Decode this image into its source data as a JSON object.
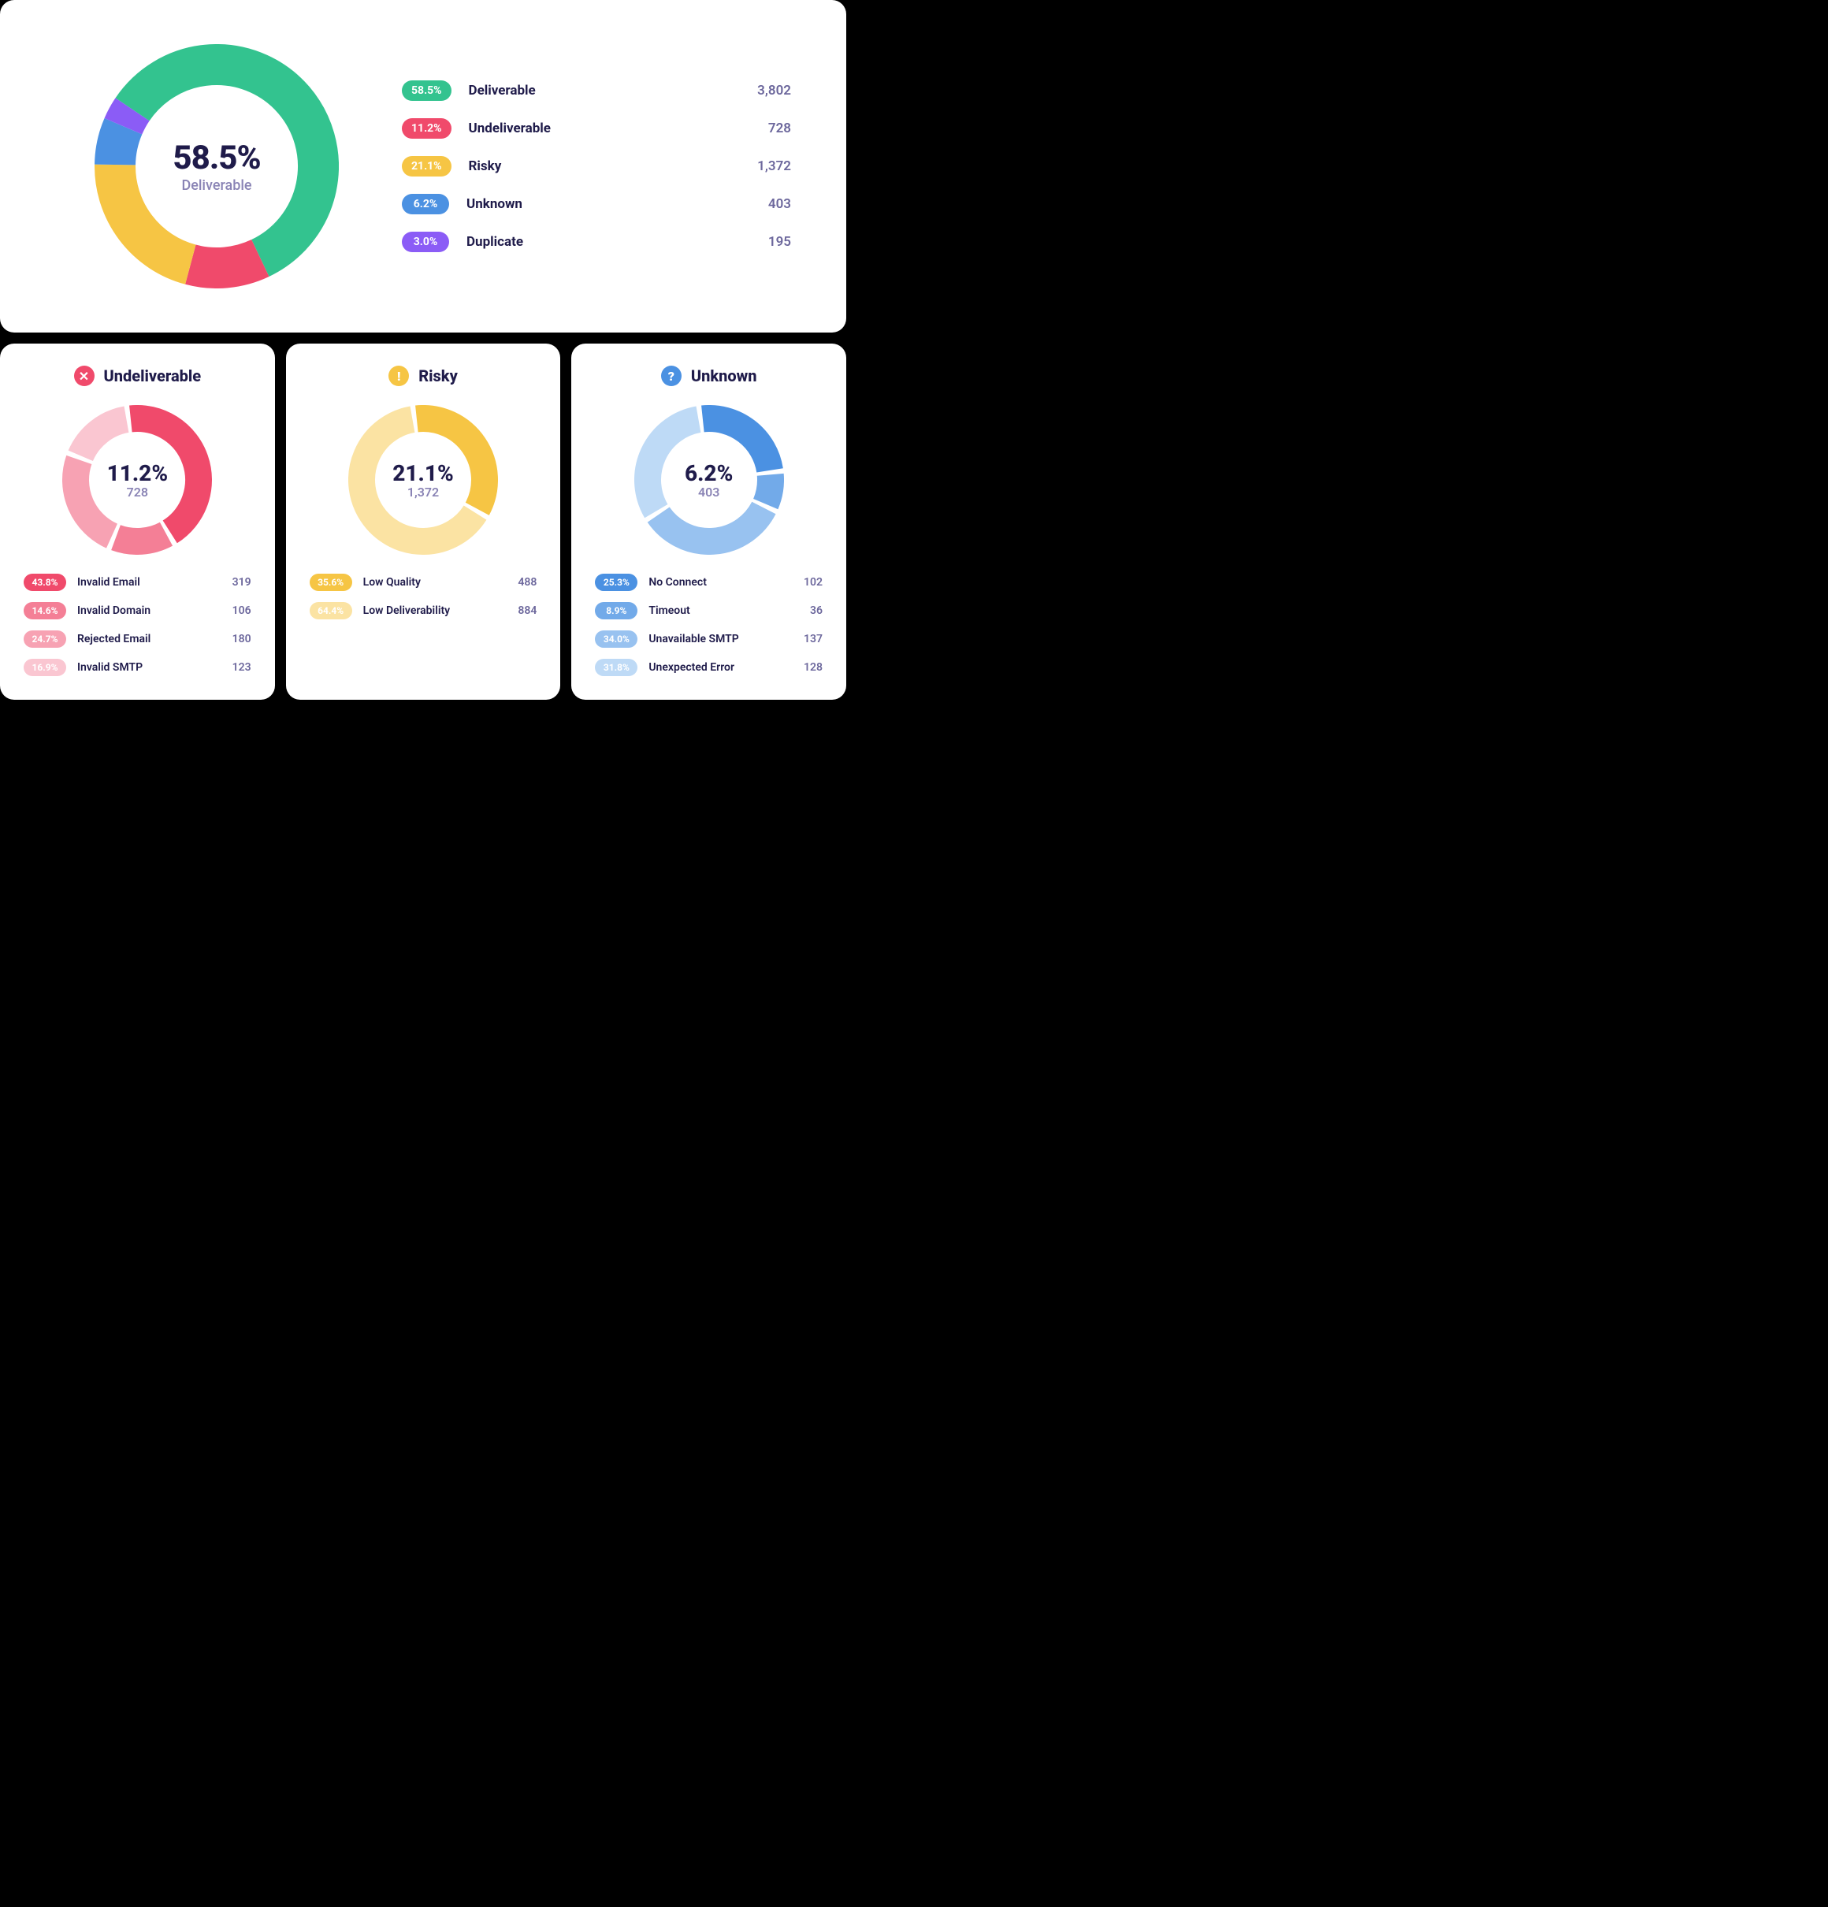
{
  "colors": {
    "text_dark": "#1f1b4a",
    "text_muted": "#8a84b5",
    "text_count": "#6c679c",
    "card_bg": "#ffffff",
    "body_bg": "#000000"
  },
  "main_chart": {
    "type": "donut",
    "size": 310,
    "thickness": 52,
    "gap_deg": 0,
    "start_angle": -56,
    "center_percent": "58.5%",
    "center_label": "Deliverable",
    "slices": [
      {
        "key": "deliverable",
        "label": "Deliverable",
        "percent": 58.5,
        "percent_label": "58.5%",
        "count": "3,802",
        "color": "#33c38f"
      },
      {
        "key": "undeliverable",
        "label": "Undeliverable",
        "percent": 11.2,
        "percent_label": "11.2%",
        "count": "728",
        "color": "#f04a6b"
      },
      {
        "key": "risky",
        "label": "Risky",
        "percent": 21.1,
        "percent_label": "21.1%",
        "count": "1,372",
        "color": "#f6c544"
      },
      {
        "key": "unknown",
        "label": "Unknown",
        "percent": 6.2,
        "percent_label": "6.2%",
        "count": "403",
        "color": "#4b91e2"
      },
      {
        "key": "duplicate",
        "label": "Duplicate",
        "percent": 3.0,
        "percent_label": "3.0%",
        "count": "195",
        "color": "#8b5cf6"
      }
    ]
  },
  "sub_charts": [
    {
      "key": "undeliverable",
      "title": "Undeliverable",
      "icon": "x",
      "icon_bg": "#f04a6b",
      "type": "donut",
      "size": 190,
      "thickness": 34,
      "gap_deg": 4,
      "start_angle": -8,
      "center_percent": "11.2%",
      "center_count": "728",
      "palette_note": "shades of pink-red, darkest for largest slice",
      "slices": [
        {
          "label": "Invalid Email",
          "percent": 43.8,
          "percent_label": "43.8%",
          "count": "319",
          "color": "#f04a6b"
        },
        {
          "label": "Invalid Domain",
          "percent": 14.6,
          "percent_label": "14.6%",
          "count": "106",
          "color": "#f47f96"
        },
        {
          "label": "Rejected Email",
          "percent": 24.7,
          "percent_label": "24.7%",
          "count": "180",
          "color": "#f7a2b3"
        },
        {
          "label": "Invalid SMTP",
          "percent": 16.9,
          "percent_label": "16.9%",
          "count": "123",
          "color": "#fac6d1"
        }
      ]
    },
    {
      "key": "risky",
      "title": "Risky",
      "icon": "!",
      "icon_bg": "#f6c544",
      "type": "donut",
      "size": 190,
      "thickness": 34,
      "gap_deg": 4,
      "start_angle": -8,
      "center_percent": "21.1%",
      "center_count": "1,372",
      "slices": [
        {
          "label": "Low Quality",
          "percent": 35.6,
          "percent_label": "35.6%",
          "count": "488",
          "color": "#f6c544"
        },
        {
          "label": "Low Deliverability",
          "percent": 64.4,
          "percent_label": "64.4%",
          "count": "884",
          "color": "#fbe3a3"
        }
      ]
    },
    {
      "key": "unknown",
      "title": "Unknown",
      "icon": "?",
      "icon_bg": "#4b91e2",
      "type": "donut",
      "size": 190,
      "thickness": 34,
      "gap_deg": 4,
      "start_angle": -8,
      "center_percent": "6.2%",
      "center_count": "403",
      "slices": [
        {
          "label": "No Connect",
          "percent": 25.3,
          "percent_label": "25.3%",
          "count": "102",
          "color": "#4b91e2"
        },
        {
          "label": "Timeout",
          "percent": 8.9,
          "percent_label": "8.9%",
          "count": "36",
          "color": "#72aae9"
        },
        {
          "label": "Unavailable SMTP",
          "percent": 34.0,
          "percent_label": "34.0%",
          "count": "137",
          "color": "#98c2f0"
        },
        {
          "label": "Unexpected Error",
          "percent": 31.8,
          "percent_label": "31.8%",
          "count": "128",
          "color": "#bedaf6"
        }
      ]
    }
  ]
}
